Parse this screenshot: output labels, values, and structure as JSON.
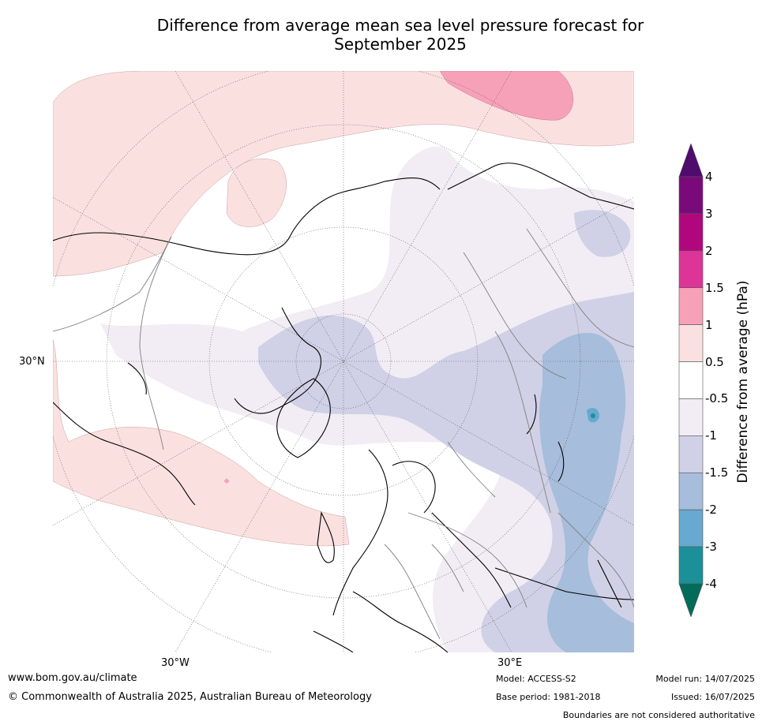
{
  "title_line1": "Difference from average mean sea level pressure forecast for",
  "title_line2": "September 2025",
  "map": {
    "projection": "polar-stereographic-north",
    "graticule": {
      "lat_label": "30°N",
      "lon_labels": [
        "30°W",
        "30°E"
      ]
    },
    "colors": {
      "coast": "#000000",
      "borders": "#808080",
      "ocean_background": "#ffffff",
      "graticule": "#555555"
    }
  },
  "colorbar": {
    "title": "Difference from average (hPa)",
    "ticks": [
      "4",
      "3",
      "2",
      "1.5",
      "1",
      "0.5",
      "-0.5",
      "-1",
      "-1.5",
      "-2",
      "-3",
      "-4"
    ],
    "bins": [
      {
        "range": "3 to 4",
        "color": "#7a0a7a"
      },
      {
        "range": "2 to 3",
        "color": "#b0087c"
      },
      {
        "range": "1.5 to 2",
        "color": "#dd3597"
      },
      {
        "range": "1 to 1.5",
        "color": "#f7a1b8"
      },
      {
        "range": "0.5 to 1",
        "color": "#fbe0e0"
      },
      {
        "range": "-0.5 to 0.5",
        "color": "#ffffff"
      },
      {
        "range": "-1 to -0.5",
        "color": "#f2ecf4"
      },
      {
        "range": "-1.5 to -1",
        "color": "#d0d1e6"
      },
      {
        "range": "-2 to -1.5",
        "color": "#a6bddb"
      },
      {
        "range": "-3 to -2",
        "color": "#67a9cf"
      },
      {
        "range": "-4 to -3",
        "color": "#1c9099"
      }
    ],
    "over_color": "#4f0b6e",
    "under_color": "#016c59"
  },
  "footer": {
    "website": "www.bom.gov.au/climate",
    "copyright": "© Commonwealth of Australia 2025, Australian Bureau of Meteorology",
    "model": "Model: ACCESS-S2",
    "base_period": "Base period: 1981-2018",
    "model_run": "Model run: 14/07/2025",
    "issued": "Issued: 16/07/2025",
    "disclaimer": "Boundaries are not considered authoritative"
  }
}
